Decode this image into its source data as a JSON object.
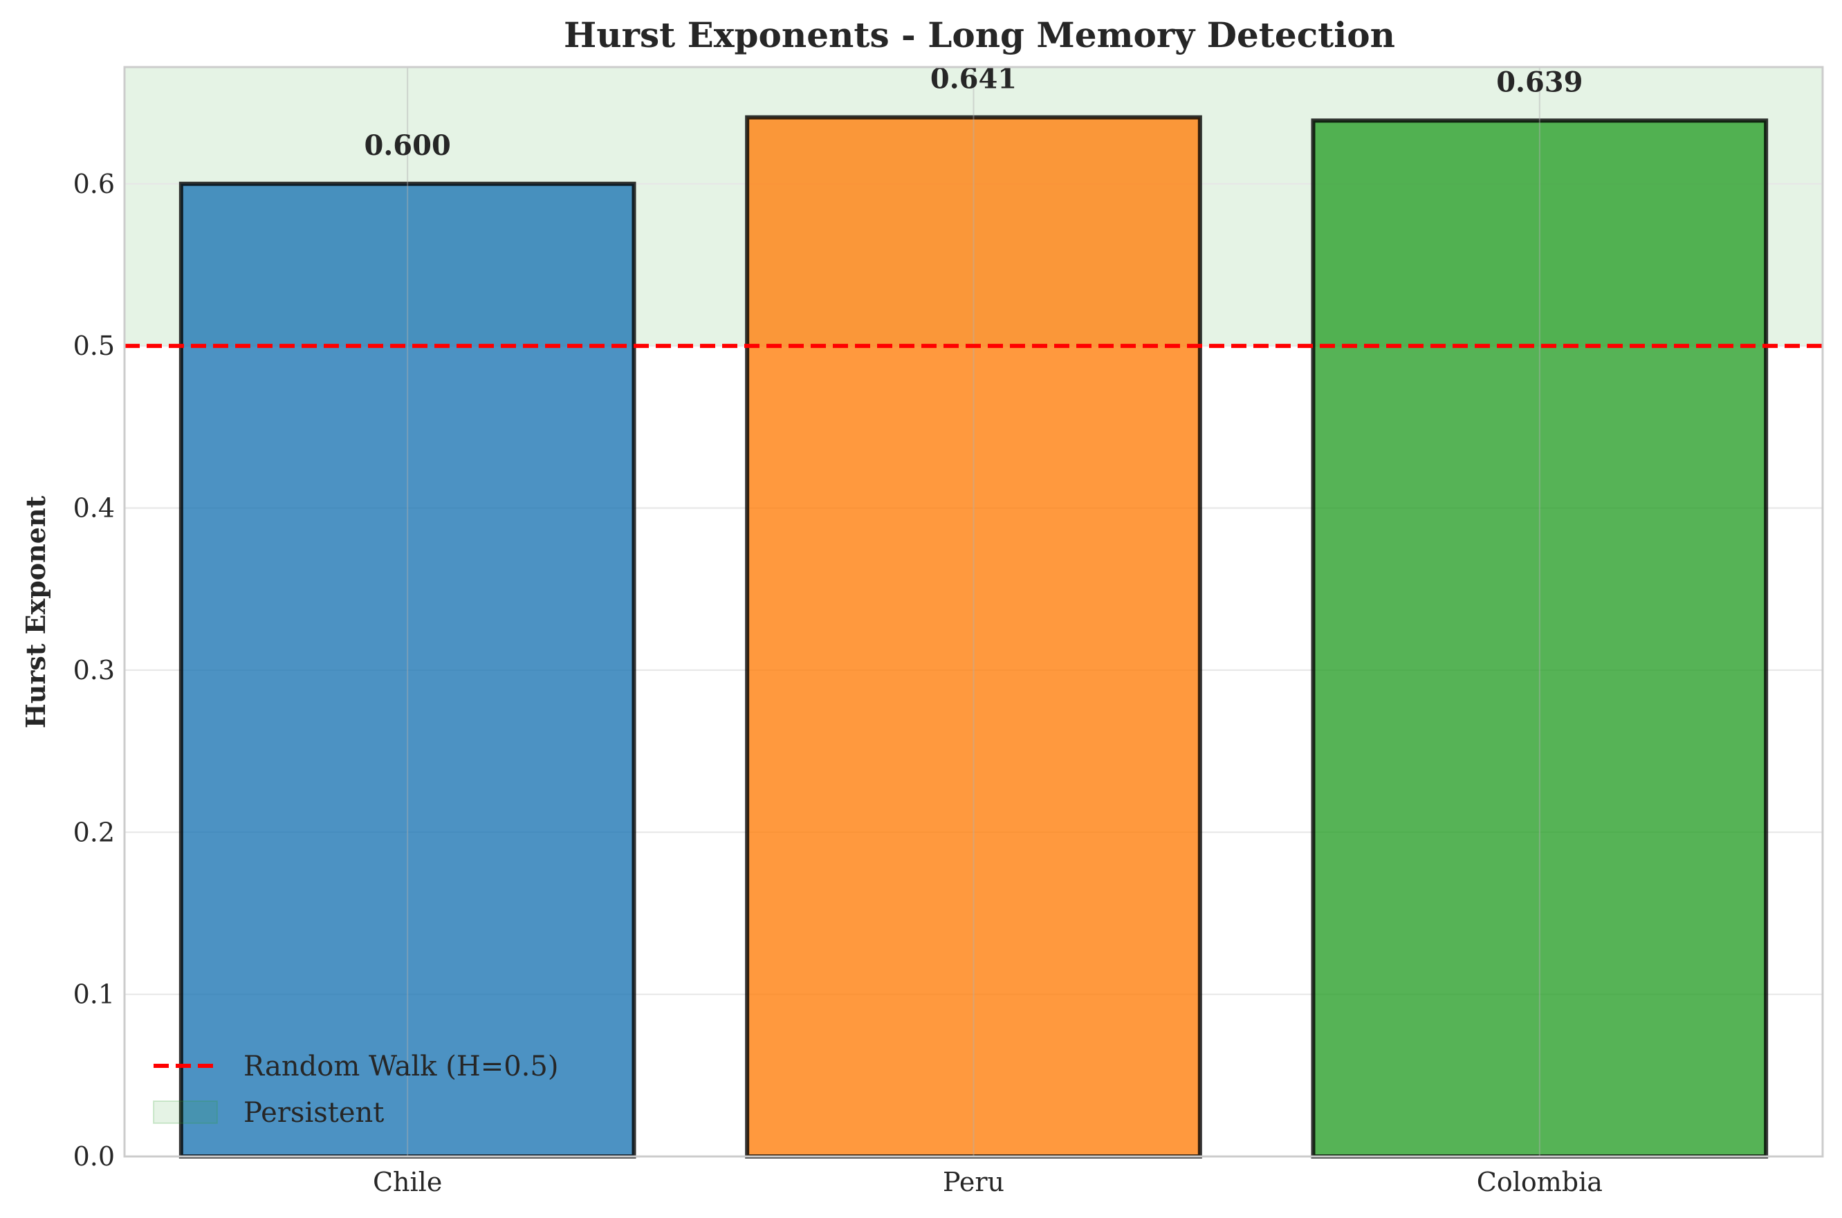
{
  "chart_data": {
    "type": "bar",
    "title": "Hurst Exponents - Long Memory Detection",
    "xlabel": "",
    "ylabel": "Hurst Exponent",
    "categories": [
      "Chile",
      "Peru",
      "Colombia"
    ],
    "values": [
      0.6,
      0.641,
      0.639
    ],
    "value_labels": [
      "0.600",
      "0.641",
      "0.639"
    ],
    "bar_colors": [
      "#1f77b4",
      "#ff7f0e",
      "#2ca02c"
    ],
    "ylim": [
      0,
      0.672
    ],
    "yticks": [
      0.0,
      0.1,
      0.2,
      0.3,
      0.4,
      0.5,
      0.6
    ],
    "ytick_labels": [
      "0.0",
      "0.1",
      "0.2",
      "0.3",
      "0.4",
      "0.5",
      "0.6"
    ],
    "grid": true,
    "reference_line": {
      "y": 0.5,
      "label": "Random Walk (H=0.5)",
      "color": "#ff0000",
      "style": "dashed"
    },
    "shaded_region": {
      "y_from": 0.5,
      "y_to": 0.672,
      "label": "Persistent",
      "color": "#2ca02c"
    },
    "legend_position": "lower-left"
  }
}
